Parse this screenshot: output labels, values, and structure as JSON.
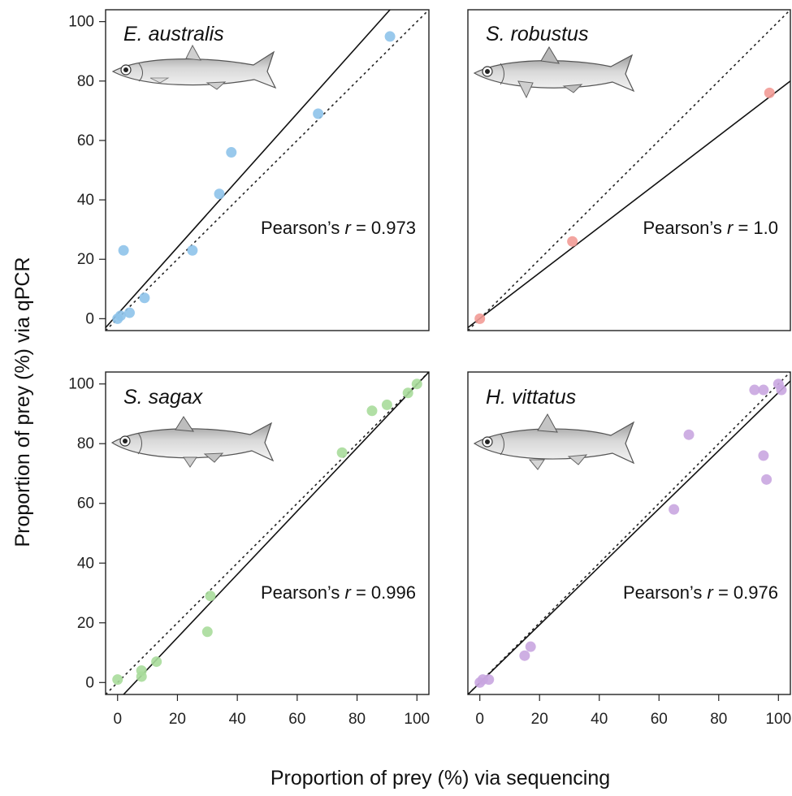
{
  "figure": {
    "xlabel": "Proportion of prey (%) via sequencing",
    "ylabel": "Proportion of prey (%) via qPCR"
  },
  "chart_data": [
    {
      "type": "scatter",
      "title": "E. australis",
      "annotation": {
        "prefix": "Pearson’s ",
        "var": "r",
        "suffix": " = 0.973"
      },
      "color": "#8ec3ea",
      "xlim": [
        -4,
        104
      ],
      "ylim": [
        -4,
        104
      ],
      "xticks": [
        0,
        20,
        40,
        60,
        80,
        100
      ],
      "yticks": [
        0,
        20,
        40,
        60,
        80,
        100
      ],
      "show_yticks": true,
      "show_xticks": false,
      "points": [
        [
          0,
          0
        ],
        [
          1,
          1
        ],
        [
          2,
          23
        ],
        [
          4,
          2
        ],
        [
          9,
          7
        ],
        [
          25,
          23
        ],
        [
          34,
          42
        ],
        [
          38,
          56
        ],
        [
          67,
          69
        ],
        [
          91,
          95
        ]
      ],
      "fit_line": [
        [
          -4,
          -3
        ],
        [
          91,
          104
        ]
      ],
      "identity_line": true
    },
    {
      "type": "scatter",
      "title": "S. robustus",
      "annotation": {
        "prefix": "Pearson’s ",
        "var": "r",
        "suffix": " = 1.0"
      },
      "color": "#f29b96",
      "xlim": [
        -4,
        104
      ],
      "ylim": [
        -4,
        104
      ],
      "xticks": [
        0,
        20,
        40,
        60,
        80,
        100
      ],
      "yticks": [
        0,
        20,
        40,
        60,
        80,
        100
      ],
      "show_yticks": false,
      "show_xticks": false,
      "points": [
        [
          0,
          0
        ],
        [
          31,
          26
        ],
        [
          97,
          76
        ]
      ],
      "fit_line": [
        [
          -4,
          -3
        ],
        [
          104,
          80
        ]
      ],
      "identity_line": true
    },
    {
      "type": "scatter",
      "title": "S. sagax",
      "annotation": {
        "prefix": "Pearson’s ",
        "var": "r",
        "suffix": " = 0.996"
      },
      "color": "#a8dc9b",
      "xlim": [
        -4,
        104
      ],
      "ylim": [
        -4,
        104
      ],
      "xticks": [
        0,
        20,
        40,
        60,
        80,
        100
      ],
      "yticks": [
        0,
        20,
        40,
        60,
        80,
        100
      ],
      "show_yticks": true,
      "show_xticks": true,
      "points": [
        [
          0,
          1
        ],
        [
          8,
          2
        ],
        [
          8,
          4
        ],
        [
          13,
          7
        ],
        [
          30,
          17
        ],
        [
          31,
          29
        ],
        [
          75,
          77
        ],
        [
          85,
          91
        ],
        [
          90,
          93
        ],
        [
          97,
          97
        ],
        [
          100,
          100
        ]
      ],
      "fit_line": [
        [
          2,
          -4
        ],
        [
          104,
          104
        ]
      ],
      "identity_line": true
    },
    {
      "type": "scatter",
      "title": "H. vittatus",
      "annotation": {
        "prefix": "Pearson’s ",
        "var": "r",
        "suffix": " = 0.976"
      },
      "color": "#c9a6e0",
      "xlim": [
        -4,
        104
      ],
      "ylim": [
        -4,
        104
      ],
      "xticks": [
        0,
        20,
        40,
        60,
        80,
        100
      ],
      "yticks": [
        0,
        20,
        40,
        60,
        80,
        100
      ],
      "show_yticks": false,
      "show_xticks": true,
      "points": [
        [
          0,
          0
        ],
        [
          1,
          1
        ],
        [
          3,
          1
        ],
        [
          15,
          9
        ],
        [
          17,
          12
        ],
        [
          65,
          58
        ],
        [
          70,
          83
        ],
        [
          92,
          98
        ],
        [
          95,
          98
        ],
        [
          95,
          76
        ],
        [
          96,
          68
        ],
        [
          100,
          100
        ],
        [
          101,
          98
        ]
      ],
      "fit_line": [
        [
          -4,
          -4
        ],
        [
          104,
          101
        ]
      ],
      "identity_line": true
    }
  ]
}
